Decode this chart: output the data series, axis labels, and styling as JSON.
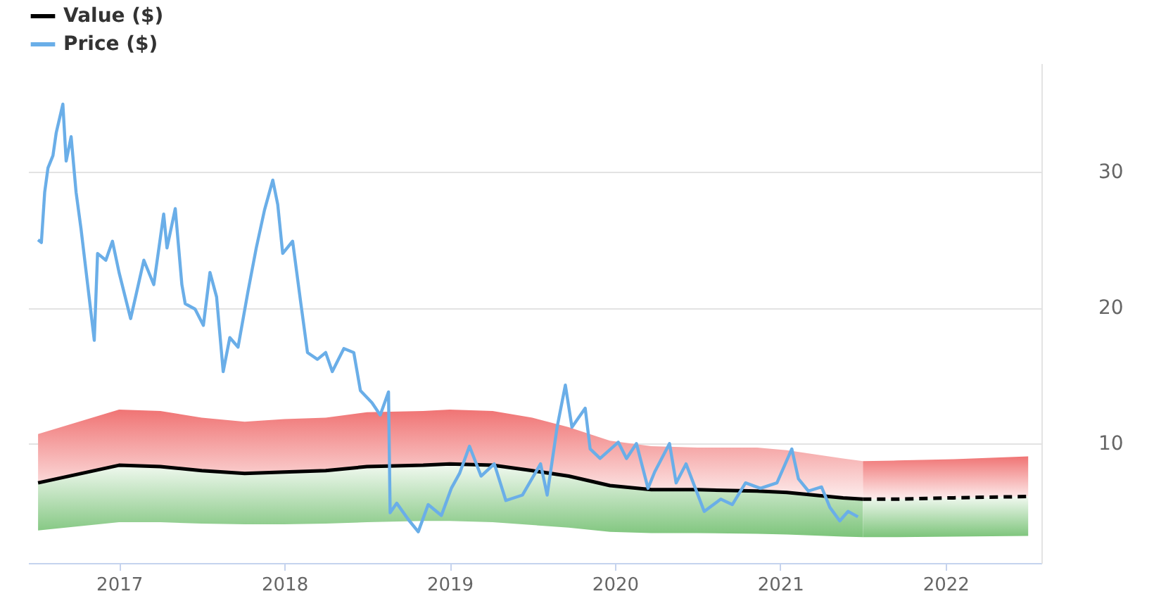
{
  "chart_data": {
    "type": "line",
    "xlim": [
      2016.45,
      2022.58
    ],
    "xticks": [
      2017,
      2018,
      2019,
      2020,
      2021,
      2022
    ],
    "ylim": [
      1.2,
      38
    ],
    "yticks": [
      10,
      20,
      30
    ],
    "grid": "y",
    "legend": "top left",
    "series": [
      {
        "name": "Value ($)",
        "color": "#000000",
        "line_style": "solid",
        "x": [
          2016.51,
          2017.0,
          2017.25,
          2017.5,
          2017.76,
          2018.0,
          2018.25,
          2018.5,
          2018.84,
          2019.0,
          2019.26,
          2019.5,
          2019.72,
          2019.97,
          2020.22,
          2020.5,
          2020.86,
          2021.04,
          2021.38,
          2021.5
        ],
        "values": [
          7.1,
          8.4,
          8.3,
          8.0,
          7.8,
          7.9,
          8.0,
          8.3,
          8.4,
          8.5,
          8.4,
          8.0,
          7.6,
          6.9,
          6.6,
          6.6,
          6.5,
          6.4,
          6.0,
          5.9
        ],
        "upper": [
          10.7,
          12.5,
          12.4,
          11.9,
          11.6,
          11.8,
          11.9,
          12.3,
          12.4,
          12.5,
          12.4,
          11.9,
          11.2,
          10.2,
          9.8,
          9.7,
          9.7,
          9.5,
          8.9,
          8.7
        ],
        "lower": [
          3.6,
          4.2,
          4.2,
          4.1,
          4.05,
          4.05,
          4.1,
          4.2,
          4.3,
          4.3,
          4.2,
          4.0,
          3.8,
          3.5,
          3.4,
          3.4,
          3.35,
          3.3,
          3.15,
          3.1
        ]
      },
      {
        "color": "#000000",
        "line_style": "dashed",
        "x": [
          2021.5,
          2021.71,
          2022.05,
          2022.5
        ],
        "values": [
          5.9,
          5.9,
          6.0,
          6.1
        ],
        "upper": [
          8.7,
          8.75,
          8.85,
          9.05
        ],
        "lower": [
          3.1,
          3.1,
          3.15,
          3.2
        ]
      },
      {
        "name": "Price ($)",
        "color": "#6aaee8",
        "line_style": "solid",
        "x": [
          2016.51,
          2016.53,
          2016.55,
          2016.57,
          2016.6,
          2016.62,
          2016.66,
          2016.68,
          2016.71,
          2016.74,
          2016.77,
          2016.81,
          2016.85,
          2016.87,
          2016.92,
          2016.96,
          2017.0,
          2017.07,
          2017.1,
          2017.15,
          2017.21,
          2017.27,
          2017.29,
          2017.34,
          2017.38,
          2017.4,
          2017.46,
          2017.51,
          2017.55,
          2017.59,
          2017.63,
          2017.67,
          2017.72,
          2017.78,
          2017.83,
          2017.88,
          2017.93,
          2017.96,
          2017.99,
          2018.05,
          2018.1,
          2018.14,
          2018.2,
          2018.25,
          2018.29,
          2018.36,
          2018.42,
          2018.46,
          2018.53,
          2018.58,
          2018.63,
          2018.64,
          2018.68,
          2018.75,
          2018.81,
          2018.87,
          2018.95,
          2019.01,
          2019.06,
          2019.12,
          2019.19,
          2019.27,
          2019.34,
          2019.44,
          2019.55,
          2019.59,
          2019.65,
          2019.7,
          2019.74,
          2019.82,
          2019.85,
          2019.91,
          2020.02,
          2020.07,
          2020.13,
          2020.2,
          2020.24,
          2020.33,
          2020.37,
          2020.43,
          2020.54,
          2020.64,
          2020.71,
          2020.79,
          2020.88,
          2020.98,
          2021.07,
          2021.11,
          2021.17,
          2021.25,
          2021.3,
          2021.36,
          2021.41,
          2021.47
        ],
        "values": [
          25.0,
          24.8,
          28.5,
          30.3,
          31.2,
          32.9,
          35.0,
          30.8,
          32.6,
          28.5,
          25.8,
          21.7,
          17.6,
          24.0,
          23.5,
          24.9,
          22.6,
          19.2,
          20.8,
          23.5,
          21.7,
          26.9,
          24.4,
          27.3,
          21.7,
          20.3,
          19.9,
          18.7,
          22.6,
          20.8,
          15.3,
          17.8,
          17.1,
          21.2,
          24.4,
          27.2,
          29.4,
          27.6,
          24.0,
          24.9,
          20.3,
          16.7,
          16.2,
          16.7,
          15.3,
          17.0,
          16.7,
          13.9,
          13.0,
          12.1,
          13.8,
          4.9,
          5.6,
          4.4,
          3.5,
          5.5,
          4.7,
          6.7,
          7.8,
          9.8,
          7.6,
          8.5,
          5.8,
          6.2,
          8.5,
          6.2,
          11.2,
          14.3,
          11.2,
          12.6,
          9.6,
          8.9,
          10.1,
          8.9,
          10.0,
          6.7,
          7.9,
          10.0,
          7.1,
          8.5,
          5.0,
          5.9,
          5.5,
          7.1,
          6.7,
          7.1,
          9.6,
          7.4,
          6.5,
          6.8,
          5.3,
          4.3,
          5.0,
          4.6
        ]
      }
    ]
  }
}
